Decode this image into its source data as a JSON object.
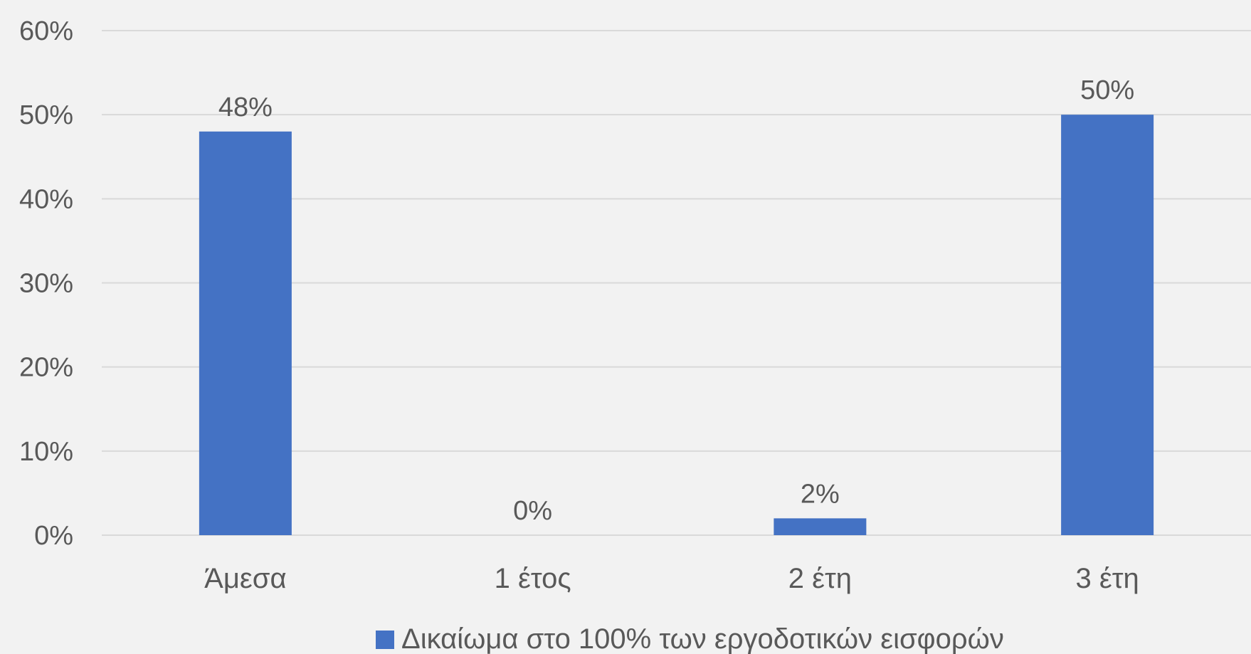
{
  "chart_data": {
    "type": "bar",
    "categories": [
      "Άμεσα",
      "1 έτος",
      "2 έτη",
      "3 έτη"
    ],
    "series": [
      {
        "name": "Δικαίωμα στο 100% των εργοδοτικών εισφορών",
        "values": [
          48,
          0,
          2,
          50
        ],
        "labels": [
          "48%",
          "0%",
          "2%",
          "50%"
        ],
        "color": "#4472c4"
      }
    ],
    "ylim": [
      0,
      60
    ],
    "yticks": [
      0,
      10,
      20,
      30,
      40,
      50,
      60
    ],
    "ytick_labels": [
      "0%",
      "10%",
      "20%",
      "30%",
      "40%",
      "50%",
      "60%"
    ],
    "grid": true,
    "grid_color": "#d9d9d9",
    "legend_position": "bottom",
    "background": "#f2f2f2"
  }
}
